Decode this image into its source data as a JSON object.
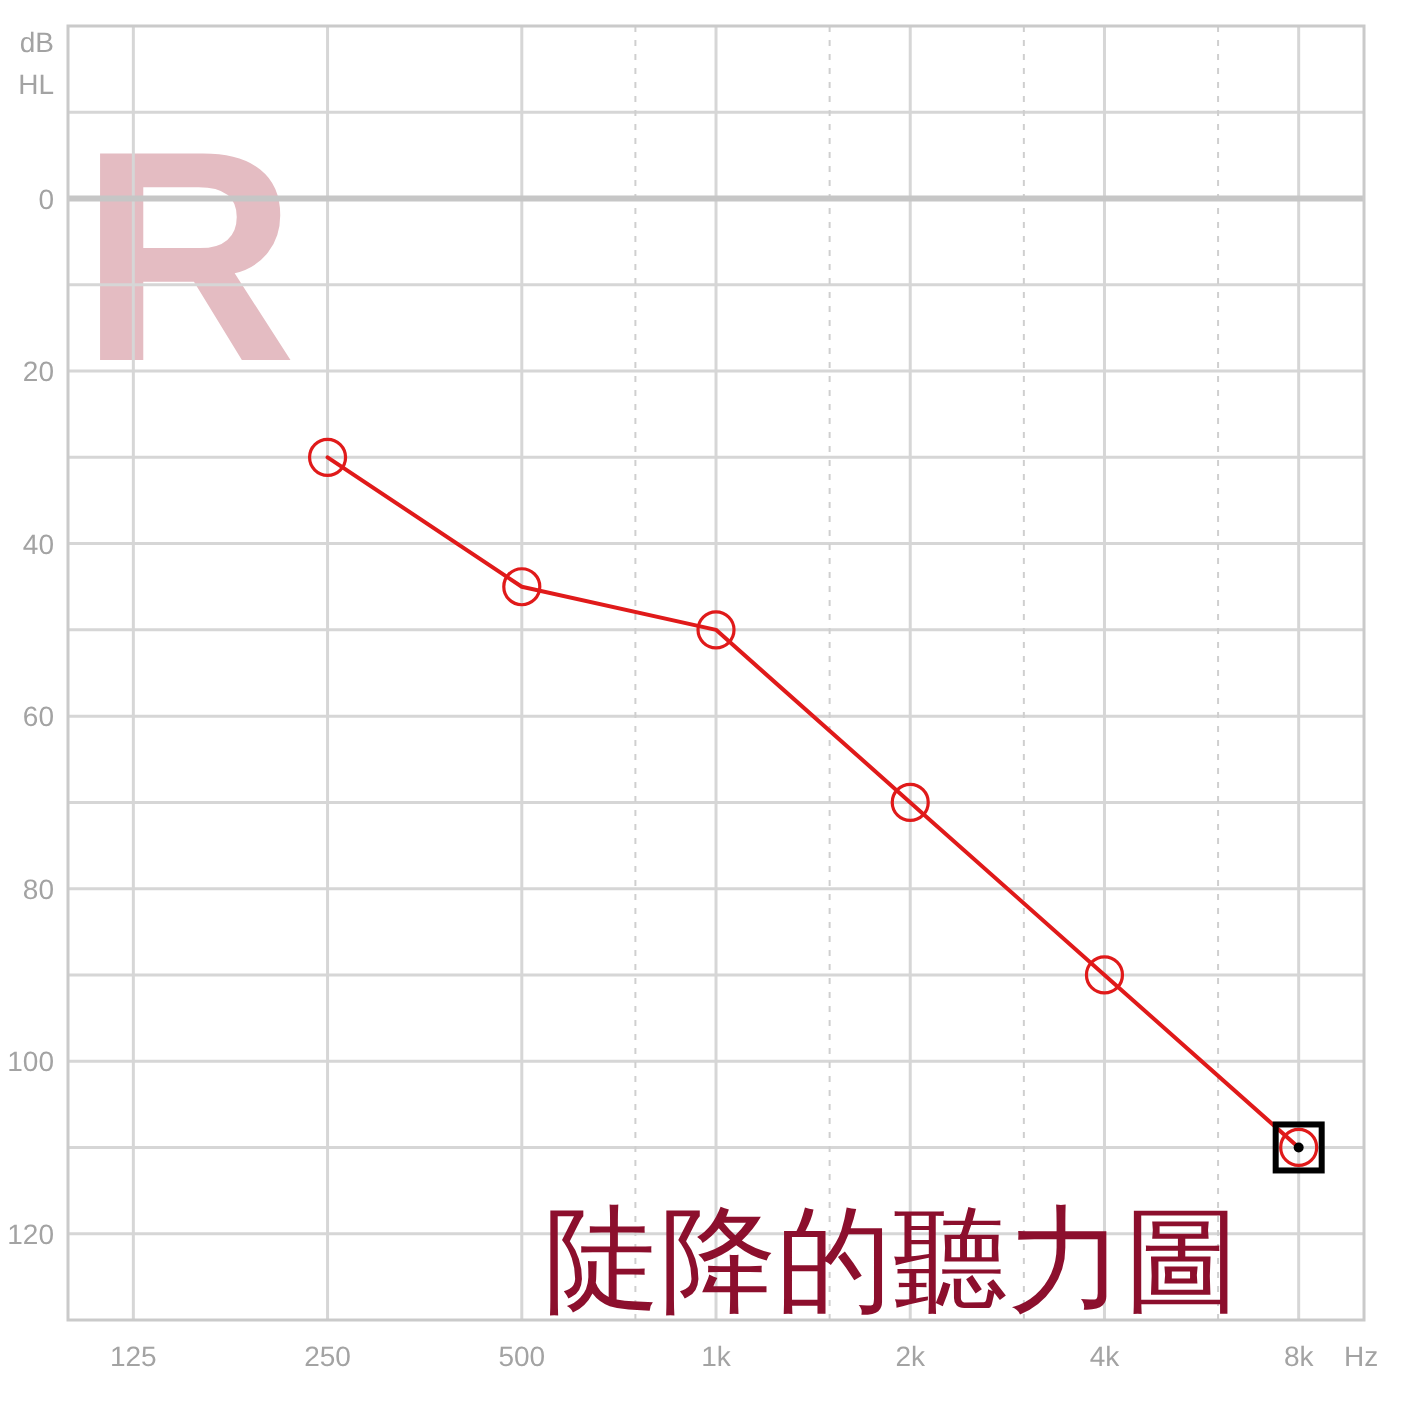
{
  "chart_data": {
    "type": "line",
    "title": "陡降的聽力圖",
    "xlabel": "Hz",
    "ylabel": "dB HL",
    "annotations": [
      "R"
    ],
    "x": [
      250,
      500,
      1000,
      2000,
      4000,
      8000
    ],
    "series": [
      {
        "color": "#e01a1a",
        "values": [
          30,
          45,
          50,
          70,
          90,
          110
        ]
      }
    ],
    "log": "x",
    "xlim": [
      99,
      10100
    ],
    "xticks": [
      125,
      250,
      500,
      {
        "value": 750,
        "label": null
      },
      {
        "value": 1000,
        "label": "1k"
      },
      {
        "value": 1500,
        "label": null
      },
      {
        "value": 2000,
        "label": "2k"
      },
      {
        "value": 3000,
        "label": null
      },
      {
        "value": 4000,
        "label": "4k"
      },
      {
        "value": 6000,
        "label": null
      },
      {
        "value": 8000,
        "label": "8k"
      }
    ],
    "ylim": [
      130,
      -20
    ],
    "yticks": [
      {
        "value": -10,
        "label": null
      },
      0,
      {
        "value": 10,
        "label": null
      },
      20,
      {
        "value": 30,
        "label": null
      },
      40,
      {
        "value": 50,
        "label": null
      },
      60,
      {
        "value": 70,
        "label": null
      },
      80,
      {
        "value": 90,
        "label": null
      },
      100,
      {
        "value": 110,
        "label": null
      },
      120
    ],
    "ref_lines": [
      {
        "axis": "y",
        "value": 0,
        "color": "#c6c6c6"
      }
    ],
    "grid": true,
    "marker": "circle",
    "line_style": "solid"
  }
}
